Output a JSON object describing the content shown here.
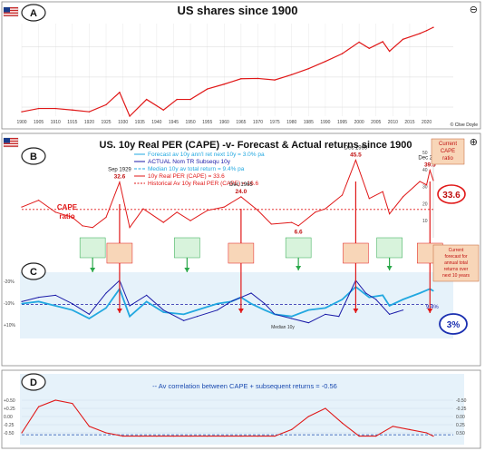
{
  "colors": {
    "red": "#e01818",
    "blue": "#1a1aa8",
    "cyan": "#22a8e0",
    "green": "#2aa84a",
    "navy_circle": "#1a2fb0",
    "panel_c_bg": "#e6f2fa",
    "panel_d_bg": "#e6f2fa",
    "callout_bg": "#f8d6b8"
  },
  "icons": {
    "flag": "us-flag-icon",
    "corner": "info-circle-icon"
  },
  "panel_a": {
    "label": "A",
    "title": "US shares since 1900",
    "corner_symbol": "⊖",
    "credit": "© Clive Doyle"
  },
  "panel_b": {
    "label": "B",
    "title": "US. 10y Real PER (CAPE) -v- Forecast & Actual returns since 1900",
    "corner_symbol": "⊕",
    "ratio_label": "CAPE\nratio",
    "ratio_label_lines": [
      "CAPE",
      "ratio"
    ],
    "current_label_lines": [
      "Current",
      "CAPE",
      "ratio"
    ],
    "current_value": "33.6",
    "legend": [
      {
        "text": "Forecast av 10y ann'l ret next 10y = 3.0% pa",
        "color": "#22a8e0"
      },
      {
        "text": "ACTUAL Nom TR Subsequ 10y",
        "color": "#1a1aa8"
      },
      {
        "text": "Median 10y av total return = 9.4% pa",
        "color": "#22a8e0"
      },
      {
        "text": "10y Real PER (CAPE) = 33.6",
        "color": "#e01818"
      },
      {
        "text": "Historical Av 10y Real PER (CAPE) = 16.6",
        "color": "#e01818"
      }
    ],
    "annotations": [
      {
        "label": "Sep 1929",
        "value": "32.6"
      },
      {
        "label": "Dec 1965",
        "value": "24.0"
      },
      {
        "label": "Dec 1999",
        "value": "45.5"
      },
      {
        "label": "Dec 2021",
        "value": "39.5"
      },
      {
        "label": "",
        "value": "6.6"
      }
    ],
    "right_axis_ticks": [
      "50",
      "40",
      "30",
      "20",
      "10"
    ]
  },
  "panel_c": {
    "label": "C",
    "current_label_lines": [
      "Current",
      "forecast for",
      "annual total",
      "returns over",
      "next 10 years"
    ],
    "current_value": "3%",
    "median_value": "9.4%",
    "median_label": "Median 10y",
    "left_axis_ticks": [
      "-20%",
      "-10%",
      "+10%"
    ]
  },
  "panel_d": {
    "label": "D",
    "legend": "-- Av correlation between CAPE + subsequent returns = -0.56",
    "left_axis_ticks": [
      "+0.50",
      "+0.25",
      "0.00",
      "-0.25",
      "-0.50"
    ],
    "right_axis_ticks": [
      "-0.50",
      "-0.25",
      "0.00",
      "0.25",
      "0.50"
    ]
  },
  "chart_data": [
    {
      "panel": "A",
      "type": "line",
      "title": "US shares since 1900",
      "yscale": "log",
      "x": [
        1900,
        1905,
        1910,
        1915,
        1920,
        1925,
        1929,
        1932,
        1937,
        1942,
        1946,
        1950,
        1955,
        1960,
        1965,
        1970,
        1975,
        1980,
        1985,
        1990,
        1995,
        2000,
        2003,
        2007,
        2009,
        2013,
        2018,
        2020,
        2022
      ],
      "y": [
        7,
        9,
        9,
        8,
        7,
        12,
        31,
        5,
        18,
        8,
        18,
        18,
        40,
        58,
        88,
        90,
        80,
        120,
        190,
        330,
        600,
        1450,
        900,
        1500,
        720,
        1800,
        2800,
        3500,
        4500
      ],
      "series": [
        {
          "name": "",
          "color": "#e01818"
        }
      ],
      "grid": true
    },
    {
      "panel": "B",
      "type": "line",
      "title": "US. 10y Real PER (CAPE) -v- Forecast & Actual returns since 1900",
      "series": [
        {
          "name": "10y Real PER (CAPE) = 33.6",
          "x": [
            1900,
            1905,
            1910,
            1915,
            1918,
            1921,
            1925,
            1929,
            1932,
            1936,
            1942,
            1946,
            1950,
            1955,
            1960,
            1965,
            1970,
            1974,
            1980,
            1982,
            1987,
            1990,
            1995,
            1999,
            2003,
            2007,
            2009,
            2013,
            2018,
            2020,
            2021,
            2022
          ],
          "values": [
            18,
            22,
            15,
            12,
            7,
            6,
            12,
            32.6,
            6,
            17,
            9,
            15,
            10,
            16,
            18,
            24,
            16,
            8,
            9,
            7,
            15,
            17,
            25,
            45.5,
            23,
            27,
            14,
            24,
            33,
            31,
            39.5,
            33.6
          ]
        },
        {
          "name": "Historical Av 10y Real PER (CAPE) = 16.6",
          "value": 16.6
        }
      ],
      "ylim": [
        0,
        50
      ]
    },
    {
      "panel": "C",
      "type": "line",
      "series": [
        {
          "name": "ACTUAL Nom TR Subsequ 10y",
          "x": [
            1900,
            1905,
            1910,
            1915,
            1920,
            1925,
            1929,
            1932,
            1937,
            1942,
            1948,
            1952,
            1958,
            1962,
            1965,
            1968,
            1972,
            1975,
            1980,
            1985,
            1990,
            1994,
            1999,
            2002,
            2005,
            2009,
            2011,
            2013
          ],
          "values": [
            8,
            6,
            5,
            9,
            14,
            4,
            -2,
            10,
            5,
            12,
            17,
            15,
            12,
            8,
            6,
            4,
            9,
            14,
            16,
            18,
            14,
            15,
            -2,
            4,
            7,
            14,
            13,
            12
          ]
        },
        {
          "name": "Forecast av 10y ann'l ret next 10y = 3.0% pa",
          "x": [
            1900,
            1905,
            1910,
            1915,
            1920,
            1925,
            1929,
            1932,
            1937,
            1942,
            1948,
            1952,
            1958,
            1962,
            1965,
            1968,
            1972,
            1975,
            1980,
            1985,
            1990,
            1995,
            1999,
            2003,
            2007,
            2009,
            2013,
            2018,
            2021,
            2022
          ],
          "values": [
            9,
            8,
            10,
            12,
            16,
            11,
            2,
            15,
            8,
            13,
            14,
            12,
            9,
            8,
            6,
            9,
            12,
            14,
            15,
            12,
            11,
            7,
            1,
            6,
            5,
            10,
            7,
            4,
            2,
            3
          ]
        },
        {
          "name": "Median 10y av total return = 9.4% pa",
          "value": 9.4
        }
      ],
      "ylim": [
        -5,
        25
      ]
    },
    {
      "panel": "D",
      "type": "line",
      "series": [
        {
          "name": "correlation",
          "x": [
            1900,
            1905,
            1910,
            1915,
            1920,
            1925,
            1930,
            1935,
            1940,
            1945,
            1950,
            1955,
            1960,
            1965,
            1970,
            1975,
            1980,
            1985,
            1990,
            1995,
            2000,
            2005,
            2010,
            2015,
            2020,
            2022
          ],
          "values": [
            -0.5,
            0.3,
            0.5,
            0.4,
            -0.3,
            -0.5,
            -0.6,
            -0.6,
            -0.6,
            -0.6,
            -0.6,
            -0.6,
            -0.6,
            -0.6,
            -0.6,
            -0.6,
            -0.4,
            0.0,
            0.25,
            -0.2,
            -0.6,
            -0.6,
            -0.3,
            -0.4,
            -0.5,
            -0.6
          ]
        },
        {
          "name": "Av correlation between CAPE + subsequent returns = -0.56",
          "value": -0.56
        }
      ],
      "ylim": [
        -0.75,
        0.75
      ]
    }
  ]
}
